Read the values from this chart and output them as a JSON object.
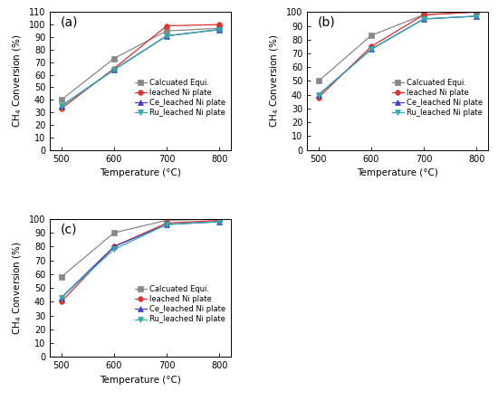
{
  "temperatures": [
    500,
    600,
    700,
    800
  ],
  "panels": [
    {
      "label": "(a)",
      "ylim": [
        0,
        110
      ],
      "yticks": [
        0,
        10,
        20,
        30,
        40,
        50,
        60,
        70,
        80,
        90,
        100,
        110
      ],
      "series": {
        "Calcuated Equi.": [
          40,
          73,
          95,
          97
        ],
        "leached Ni plate": [
          33,
          65,
          99,
          100
        ],
        "Ce_leached Ni plate": [
          35,
          64,
          91,
          96
        ],
        "Ru_leached Ni plate": [
          35,
          64,
          91,
          96
        ]
      },
      "legend_loc": "center right"
    },
    {
      "label": "(b)",
      "ylim": [
        0,
        100
      ],
      "yticks": [
        0,
        10,
        20,
        30,
        40,
        50,
        60,
        70,
        80,
        90,
        100
      ],
      "series": {
        "Calcuated Equi.": [
          50,
          83,
          98,
          100
        ],
        "leached Ni plate": [
          38,
          75,
          98,
          100
        ],
        "Ce_leached Ni plate": [
          40,
          73,
          95,
          97
        ],
        "Ru_leached Ni plate": [
          40,
          73,
          95,
          97
        ]
      },
      "legend_loc": "center right"
    },
    {
      "label": "(c)",
      "ylim": [
        0,
        100
      ],
      "yticks": [
        0,
        10,
        20,
        30,
        40,
        50,
        60,
        70,
        80,
        90,
        100
      ],
      "series": {
        "Calcuated Equi.": [
          58,
          90,
          99,
          100
        ],
        "leached Ni plate": [
          40,
          80,
          97,
          99
        ],
        "Ce_leached Ni plate": [
          43,
          80,
          96,
          98
        ],
        "Ru_leached Ni plate": [
          43,
          78,
          96,
          98
        ]
      },
      "legend_loc": "center right"
    }
  ],
  "series_styles": {
    "Calcuated Equi.": {
      "color": "#888888",
      "marker": "s",
      "linestyle": "-"
    },
    "leached Ni plate": {
      "color": "#e03030",
      "marker": "o",
      "linestyle": "-"
    },
    "Ce_leached Ni plate": {
      "color": "#4040cc",
      "marker": "^",
      "linestyle": "-"
    },
    "Ru_leached Ni plate": {
      "color": "#30aaaa",
      "marker": "v",
      "linestyle": "-"
    }
  },
  "xlabel": "Temperature (°C)",
  "ylabel": "CH$_4$ Conversion (%)",
  "background_color": "#ffffff",
  "legend_fontsize": 6.0,
  "axis_label_fontsize": 7.5,
  "tick_fontsize": 7,
  "panel_label_fontsize": 10
}
